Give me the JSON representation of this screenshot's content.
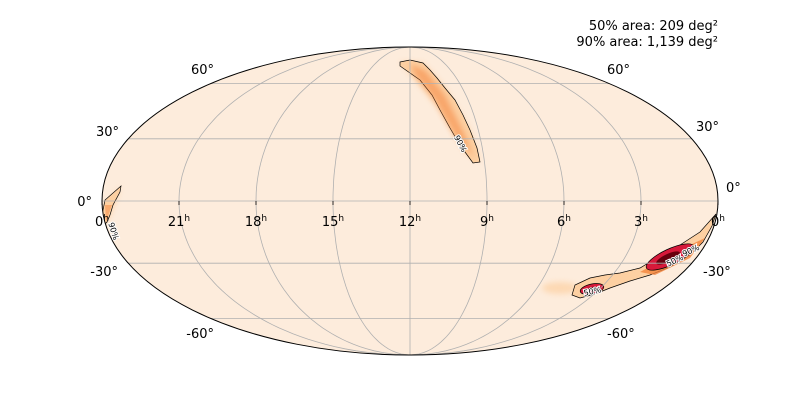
{
  "chart_data": {
    "type": "heatmap",
    "projection": "mollweide",
    "annotations": {
      "area50": "50% area: 209 deg²",
      "area90": "90% area: 1,139 deg²"
    },
    "ra_tick_labels": [
      {
        "ra": 24,
        "text": "0",
        "sup": "h"
      },
      {
        "ra": 21,
        "text": "21",
        "sup": "h"
      },
      {
        "ra": 18,
        "text": "18",
        "sup": "h"
      },
      {
        "ra": 15,
        "text": "15",
        "sup": "h"
      },
      {
        "ra": 12,
        "text": "12",
        "sup": "h"
      },
      {
        "ra": 9,
        "text": "9",
        "sup": "h"
      },
      {
        "ra": 6,
        "text": "6",
        "sup": "h"
      },
      {
        "ra": 3,
        "text": "3",
        "sup": "h"
      },
      {
        "ra": 0,
        "text": "0",
        "sup": "h"
      }
    ],
    "dec_tick_labels": [
      {
        "dec": 60,
        "text": "60°"
      },
      {
        "dec": 30,
        "text": "30°"
      },
      {
        "dec": 0,
        "text": "0°"
      },
      {
        "dec": -30,
        "text": "-30°"
      },
      {
        "dec": -60,
        "text": "-60°"
      }
    ],
    "ra_grid_hours": [
      3,
      6,
      9,
      15,
      18,
      21
    ],
    "dec_grid_degrees": [
      -60,
      -30,
      0,
      30,
      60
    ],
    "grid": true,
    "contour_levels": [
      "50%",
      "90%"
    ],
    "contour_labels": [
      {
        "text": "90%",
        "region": "north"
      },
      {
        "text": "90%",
        "region": "west-edge"
      },
      {
        "text": "50%",
        "region": "south-main"
      },
      {
        "text": "90%",
        "region": "south-main"
      },
      {
        "text": "50%",
        "region": "south-secondary"
      }
    ],
    "colors": {
      "background": "#fdecdc",
      "low": "#fdd0a2",
      "mid": "#f4843c",
      "high": "#d7193a",
      "peak": "#67000d",
      "grid": "#b0b0b0"
    }
  }
}
